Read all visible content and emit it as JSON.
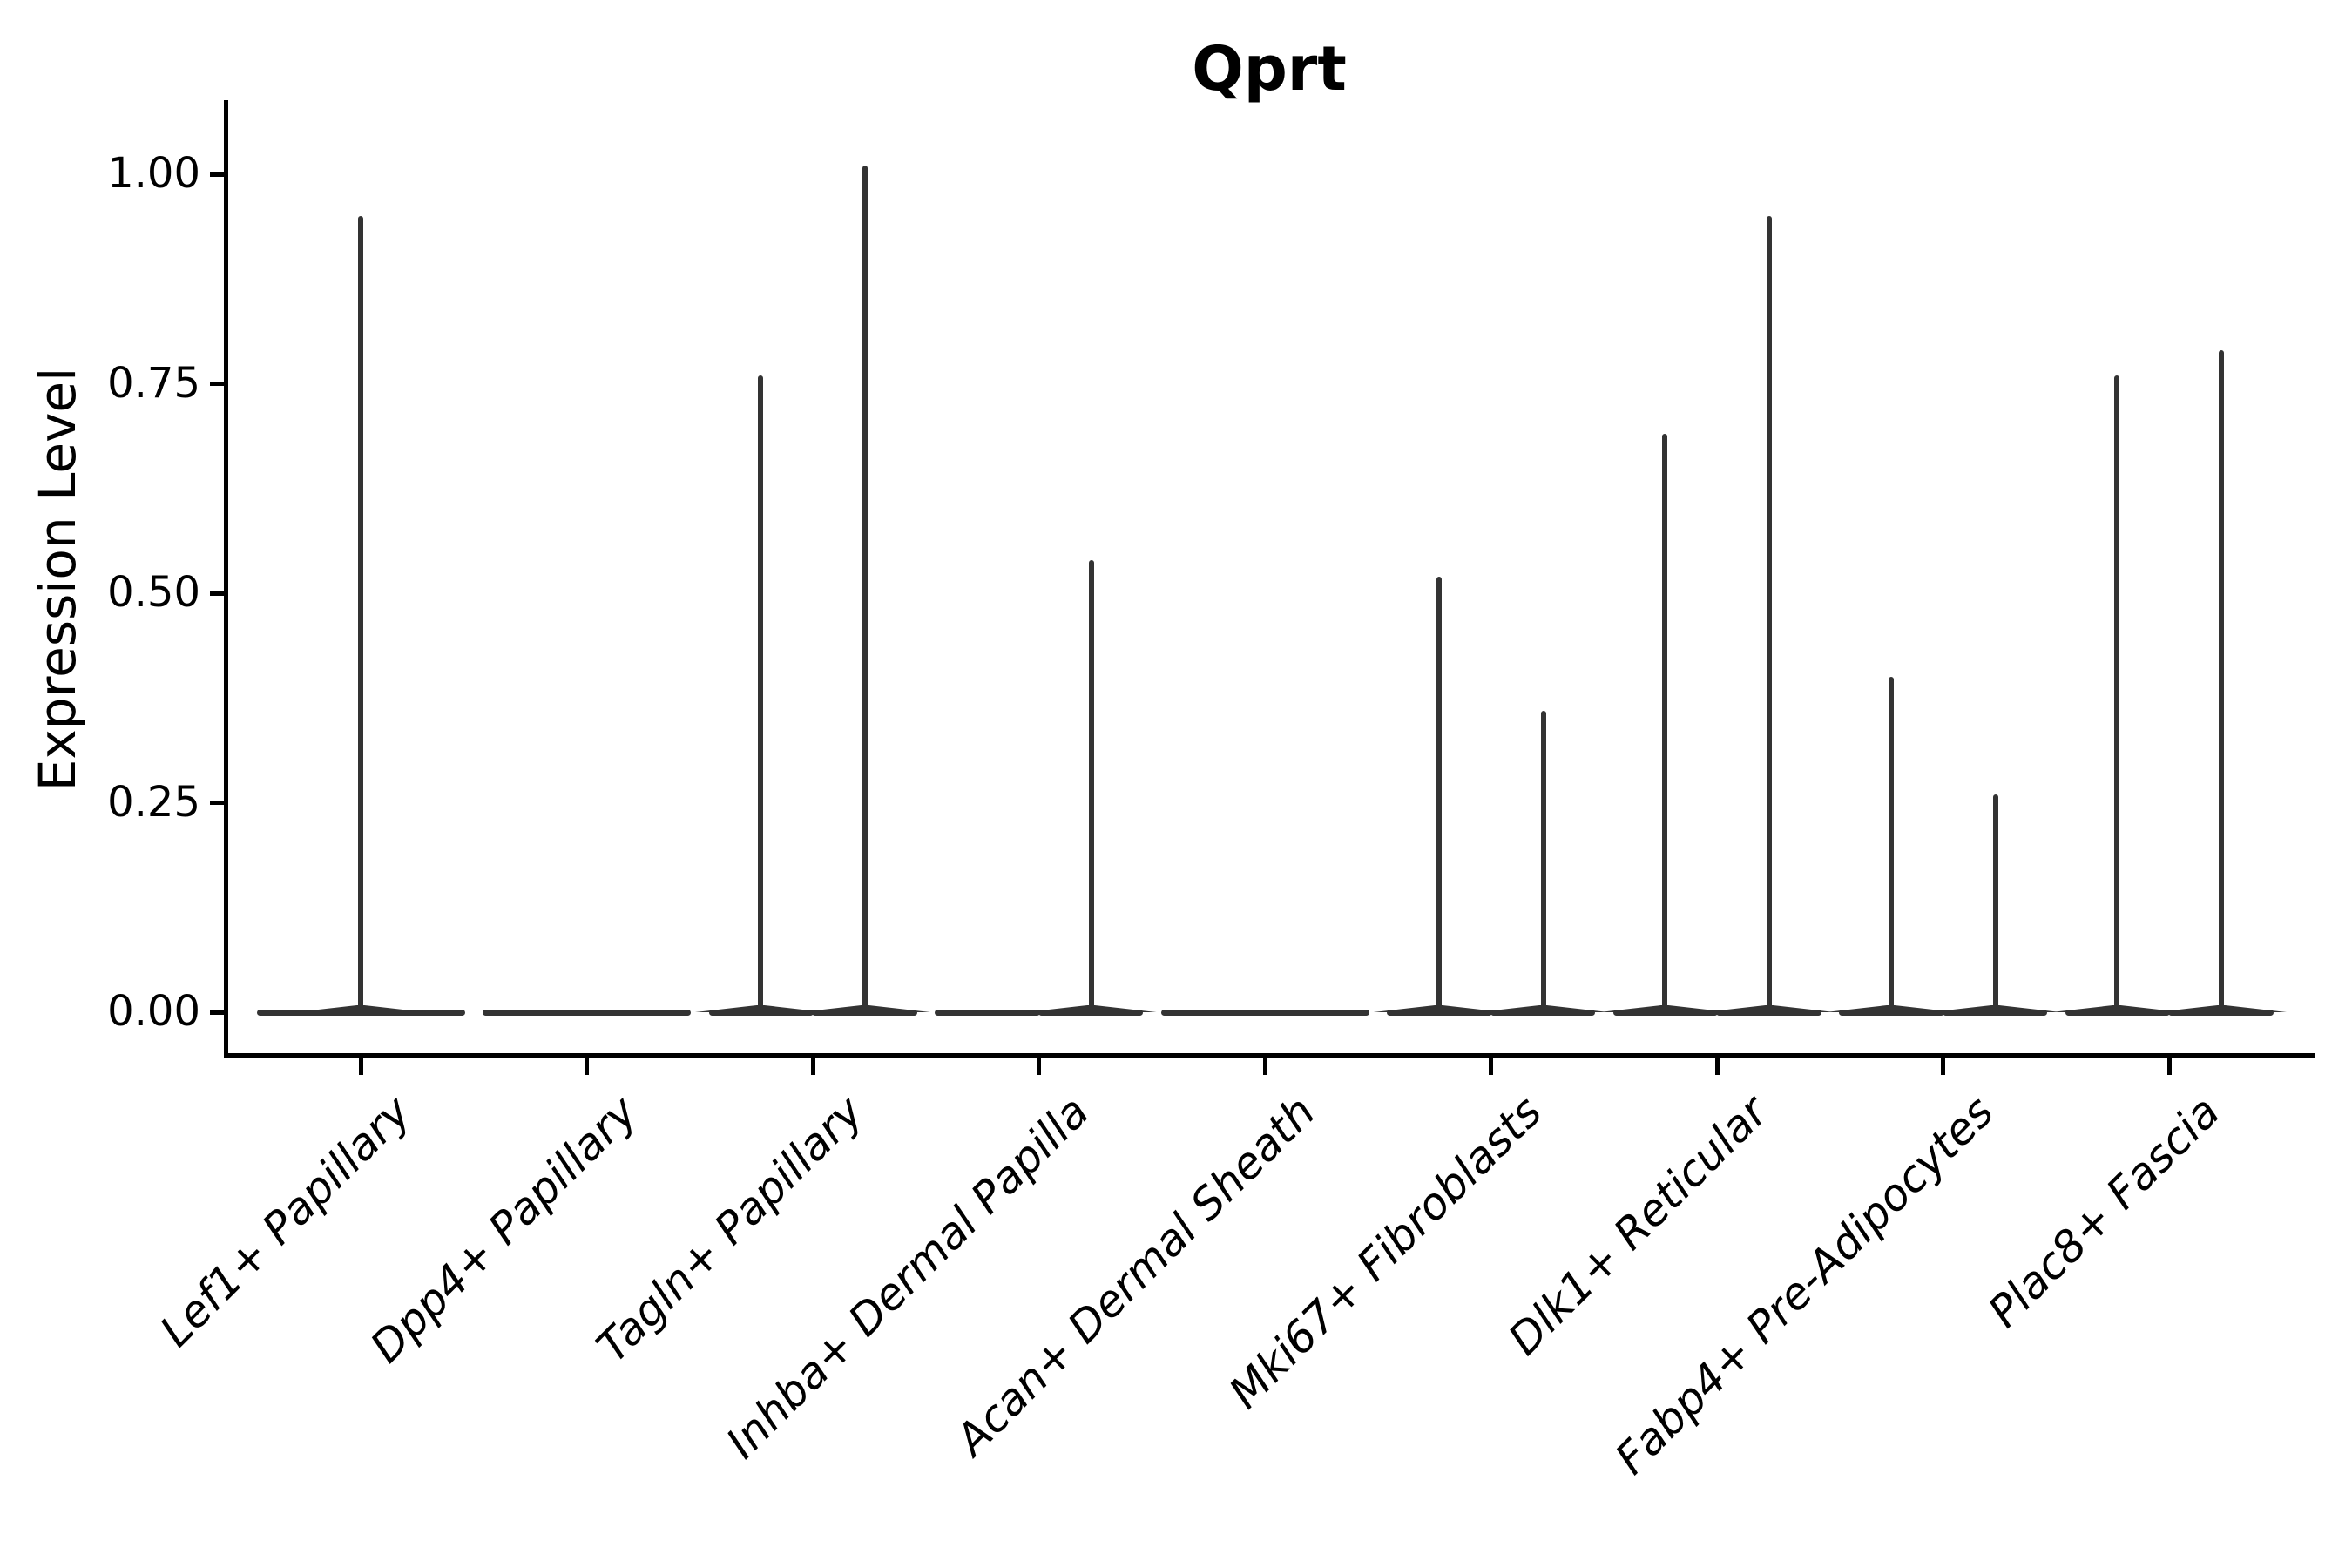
{
  "chart_data": {
    "type": "violin",
    "title": "Qprt",
    "ylabel": "Expression Level",
    "xlabel": "",
    "ylim": [
      0,
      1.05
    ],
    "yticks": [
      0.0,
      0.25,
      0.5,
      0.75,
      1.0
    ],
    "ytick_labels": [
      "0.00",
      "0.25",
      "0.50",
      "0.75",
      "1.00"
    ],
    "grid": false,
    "legend": "none",
    "categories": [
      "Lef1+ Papillary",
      "Dpp4+ Papillary",
      "Tagln+ Papillary",
      "Inhba+ Dermal Papilla",
      "Acan+ Dermal Sheath",
      "Mki67+ Fibroblasts",
      "Dlk1+ Reticular",
      "Fabp4+ Pre-Adipocytes",
      "Plac8+ Fascia"
    ],
    "violins": [
      {
        "category": "Lef1+ Papillary",
        "groups": [
          {
            "slot": "full",
            "peak": 0.95
          }
        ]
      },
      {
        "category": "Dpp4+ Papillary",
        "groups": [
          {
            "slot": "full",
            "peak": 0.0
          }
        ]
      },
      {
        "category": "Tagln+ Papillary",
        "groups": [
          {
            "slot": "left",
            "peak": 0.76
          },
          {
            "slot": "right",
            "peak": 1.01
          }
        ]
      },
      {
        "category": "Inhba+ Dermal Papilla",
        "groups": [
          {
            "slot": "left",
            "peak": 0.0
          },
          {
            "slot": "right",
            "peak": 0.54
          }
        ]
      },
      {
        "category": "Acan+ Dermal Sheath",
        "groups": [
          {
            "slot": "full",
            "peak": 0.0
          }
        ]
      },
      {
        "category": "Mki67+ Fibroblasts",
        "groups": [
          {
            "slot": "left",
            "peak": 0.52
          },
          {
            "slot": "right",
            "peak": 0.36
          }
        ]
      },
      {
        "category": "Dlk1+ Reticular",
        "groups": [
          {
            "slot": "left",
            "peak": 0.69
          },
          {
            "slot": "right",
            "peak": 0.95
          }
        ]
      },
      {
        "category": "Fabp4+ Pre-Adipocytes",
        "groups": [
          {
            "slot": "left",
            "peak": 0.4
          },
          {
            "slot": "right",
            "peak": 0.26
          }
        ]
      },
      {
        "category": "Plac8+ Fascia",
        "groups": [
          {
            "slot": "left",
            "peak": 0.76
          },
          {
            "slot": "right",
            "peak": 0.79
          }
        ]
      }
    ],
    "colors": {
      "violin": "#333333",
      "axis": "#000000",
      "text": "#000000",
      "background": "#ffffff"
    }
  }
}
